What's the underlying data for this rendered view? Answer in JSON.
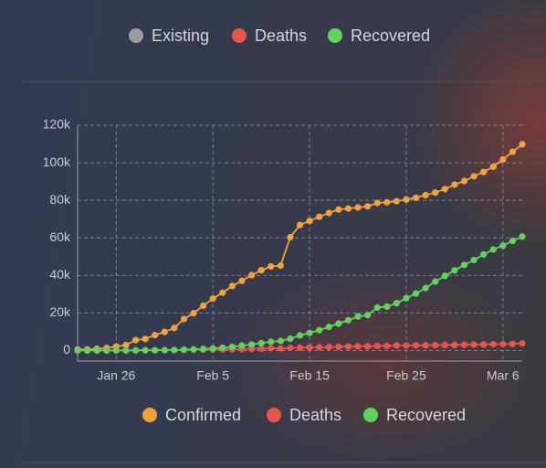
{
  "header_legend": [
    {
      "name": "Existing",
      "color": "#9c9c9e"
    },
    {
      "name": "Deaths",
      "color": "#e9544c"
    },
    {
      "name": "Recovered",
      "color": "#5fd35c"
    }
  ],
  "chart_data": {
    "type": "line",
    "categories": [
      null,
      null,
      null,
      null,
      "Jan 26",
      null,
      null,
      null,
      null,
      null,
      null,
      null,
      null,
      null,
      "Feb 5",
      null,
      null,
      null,
      null,
      null,
      null,
      null,
      null,
      null,
      "Feb 15",
      null,
      null,
      null,
      null,
      null,
      null,
      null,
      null,
      null,
      "Feb 25",
      null,
      null,
      null,
      null,
      null,
      null,
      null,
      null,
      null,
      "Mar 6",
      null,
      null
    ],
    "series": [
      {
        "name": "Confirmed",
        "color": "#f0a23c",
        "values": [
          555,
          654,
          941,
          1434,
          2118,
          2927,
          5578,
          6166,
          8234,
          9927,
          12038,
          16787,
          19881,
          23892,
          27635,
          30794,
          34391,
          37120,
          40150,
          42762,
          44802,
          45221,
          60368,
          66885,
          69030,
          71224,
          73258,
          75136,
          75639,
          76197,
          76819,
          78572,
          78958,
          79561,
          80406,
          81388,
          82746,
          84112,
          86011,
          88369,
          90306,
          92840,
          95120,
          97886,
          101801,
          105847,
          109821
        ]
      },
      {
        "name": "Deaths",
        "color": "#e9544c",
        "values": [
          17,
          18,
          26,
          42,
          56,
          82,
          131,
          133,
          171,
          213,
          259,
          362,
          426,
          492,
          564,
          634,
          719,
          806,
          906,
          1013,
          1113,
          1118,
          1371,
          1523,
          1666,
          1770,
          1868,
          2007,
          2122,
          2247,
          2251,
          2458,
          2469,
          2629,
          2708,
          2770,
          2814,
          2872,
          2941,
          2996,
          3085,
          3160,
          3254,
          3348,
          3460,
          3558,
          3802
        ]
      },
      {
        "name": "Recovered",
        "color": "#5fd35c",
        "values": [
          28,
          30,
          36,
          39,
          52,
          61,
          107,
          126,
          143,
          222,
          284,
          472,
          623,
          852,
          1124,
          1487,
          2011,
          2616,
          3244,
          3946,
          4683,
          5150,
          6295,
          8058,
          9395,
          10865,
          12583,
          14352,
          16121,
          18177,
          18890,
          22886,
          23394,
          25227,
          27905,
          30384,
          33277,
          36711,
          39782,
          42716,
          45602,
          48228,
          51170,
          53796,
          55865,
          58359,
          60694
        ]
      }
    ],
    "ylim": [
      -5600,
      120000
    ],
    "yticks": [
      0,
      {
        "value": 20000,
        "label": "20k"
      },
      {
        "value": 40000,
        "label": "40k"
      },
      {
        "value": 60000,
        "label": "60k"
      },
      {
        "value": 80000,
        "label": "80k"
      },
      {
        "value": 100000,
        "label": "100k"
      },
      {
        "value": 120000,
        "label": "120k"
      }
    ],
    "grid": true
  }
}
